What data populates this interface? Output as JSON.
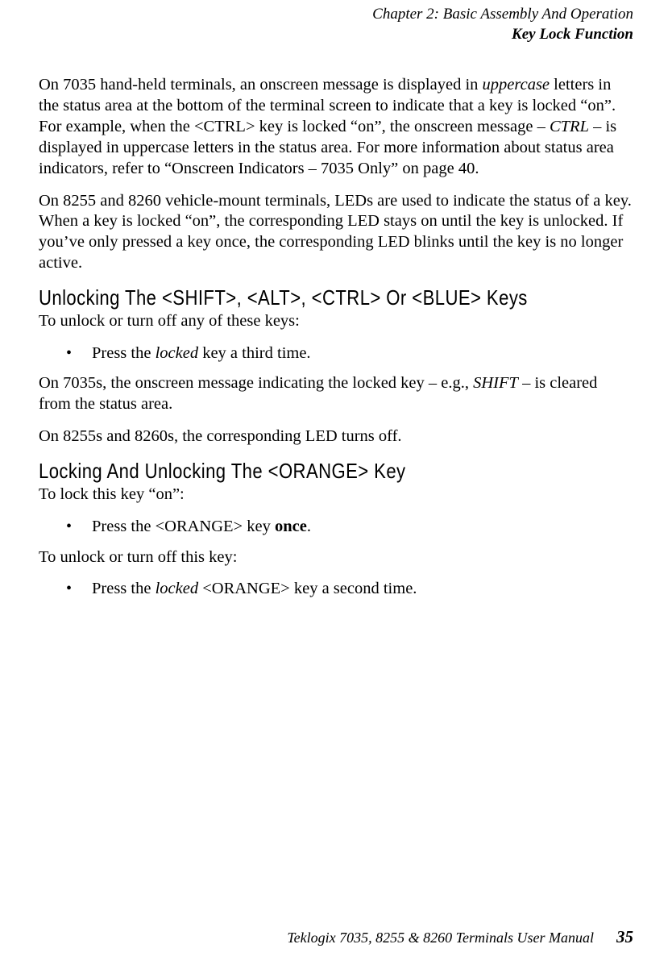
{
  "page": {
    "header": {
      "chapter": "Chapter  2:  Basic Assembly And Operation",
      "section": "Key Lock Function"
    },
    "paragraphs": {
      "p1_a": "On 7035 hand-held terminals, an onscreen message is displayed in ",
      "p1_b": "uppercase",
      "p1_c": " letters in the status area at the bottom of the terminal screen to indicate that a key is locked “on”. For example, when the <CTRL> key is locked “on”, the onscreen message – ",
      "p1_d": "CTRL",
      "p1_e": " – is displayed in uppercase letters in the status area. For more information about status area indicators, refer to “Onscreen Indicators – 7035 Only” on page 40.",
      "p2": "On 8255 and 8260 vehicle-mount terminals, LEDs are used to indicate the status of a key. When a key is locked “on”, the corresponding LED stays on until the key is unlocked. If you’ve only pressed a key once, the corresponding LED blinks until the key is no longer active.",
      "p3": "To unlock or turn off any of these keys:",
      "p4_a": "On 7035s, the onscreen message indicating the locked key – e.g., ",
      "p4_b": "SHIFT",
      "p4_c": " – is cleared from the status area.",
      "p5": "On 8255s and 8260s, the corresponding LED turns off.",
      "p6": "To lock this key “on”:",
      "p7": "To unlock or turn off this key:"
    },
    "headings": {
      "h1": "Unlocking The <SHIFT>, <ALT>, <CTRL> Or <BLUE> Keys",
      "h2": "Locking And Unlocking The <ORANGE> Key"
    },
    "bullets": {
      "b1_a": "Press the ",
      "b1_b": "locked",
      "b1_c": " key a third time.",
      "b2_a": "Press the <ORANGE> key ",
      "b2_b": "once",
      "b2_c": ".",
      "b3_a": "Press the ",
      "b3_b": "locked",
      "b3_c": " <ORANGE> key a second time."
    },
    "footer": {
      "title": "Teklogix 7035, 8255 & 8260 Terminals User Manual",
      "page_number": "35"
    }
  }
}
